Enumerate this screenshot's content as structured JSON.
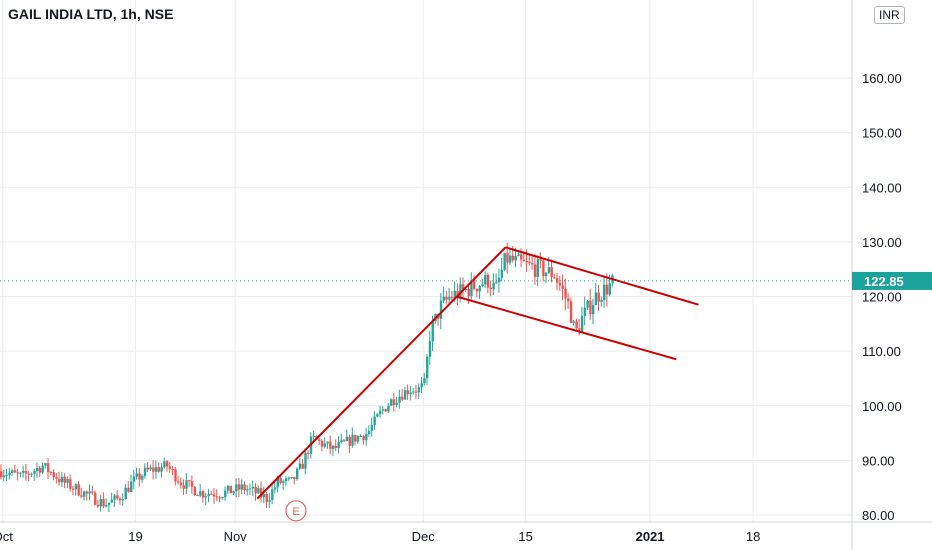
{
  "header": {
    "title": "GAIL INDIA LTD, 1h, NSE",
    "currency": "INR"
  },
  "colors": {
    "up": "#26a69a",
    "down": "#ef5350",
    "trendline": "#cc0000",
    "grid": "#e9ecf0",
    "axis_text": "#131722",
    "price_line": "#1aa39a"
  },
  "chart_data": {
    "type": "candlestick",
    "y_ticks": [
      80,
      90,
      100,
      110,
      120,
      130,
      140,
      150,
      160
    ],
    "ylim": [
      79,
      173
    ],
    "x_ticks": [
      {
        "label": "Oct",
        "bar": 4
      },
      {
        "label": "19",
        "bar": 196
      },
      {
        "label": "Nov",
        "bar": 340
      },
      {
        "label": "Dec",
        "bar": 612
      },
      {
        "label": "15",
        "bar": 760
      },
      {
        "label": "2021",
        "bar": 940
      },
      {
        "label": "18",
        "bar": 1089
      }
    ],
    "bar_count": 1232,
    "last_price": "122.85",
    "last_price_value": 122.85,
    "anchors": [
      [
        0,
        88
      ],
      [
        30,
        87
      ],
      [
        60,
        89
      ],
      [
        90,
        86
      ],
      [
        120,
        84
      ],
      [
        150,
        82
      ],
      [
        170,
        83
      ],
      [
        190,
        86
      ],
      [
        210,
        88
      ],
      [
        240,
        89
      ],
      [
        260,
        86
      ],
      [
        290,
        84
      ],
      [
        320,
        84
      ],
      [
        350,
        85
      ],
      [
        370,
        84
      ],
      [
        385,
        83
      ],
      [
        400,
        86
      ],
      [
        420,
        86
      ],
      [
        435,
        89
      ],
      [
        450,
        94
      ],
      [
        480,
        92
      ],
      [
        510,
        94
      ],
      [
        530,
        95
      ],
      [
        550,
        99
      ],
      [
        565,
        101
      ],
      [
        590,
        103
      ],
      [
        605,
        103
      ],
      [
        612,
        104
      ],
      [
        620,
        113
      ],
      [
        635,
        118
      ],
      [
        650,
        120
      ],
      [
        670,
        121
      ],
      [
        685,
        122
      ],
      [
        705,
        123
      ],
      [
        715,
        121
      ],
      [
        730,
        127
      ],
      [
        750,
        126
      ],
      [
        780,
        125
      ],
      [
        800,
        124
      ],
      [
        812,
        121
      ],
      [
        822,
        118
      ],
      [
        830,
        113
      ],
      [
        840,
        116
      ],
      [
        850,
        118
      ],
      [
        860,
        120
      ],
      [
        870,
        121
      ],
      [
        880,
        122
      ],
      [
        887,
        122.85
      ]
    ],
    "trendlines": [
      {
        "from": [
          372,
          83
        ],
        "to": [
          731,
          129
        ]
      },
      {
        "from": [
          731,
          129
        ],
        "to": [
          1010,
          118.5
        ]
      },
      {
        "from": [
          660,
          120
        ],
        "to": [
          978,
          108.5
        ]
      }
    ],
    "annotation": {
      "label": "E",
      "bar": 428,
      "value": 81.5
    }
  }
}
